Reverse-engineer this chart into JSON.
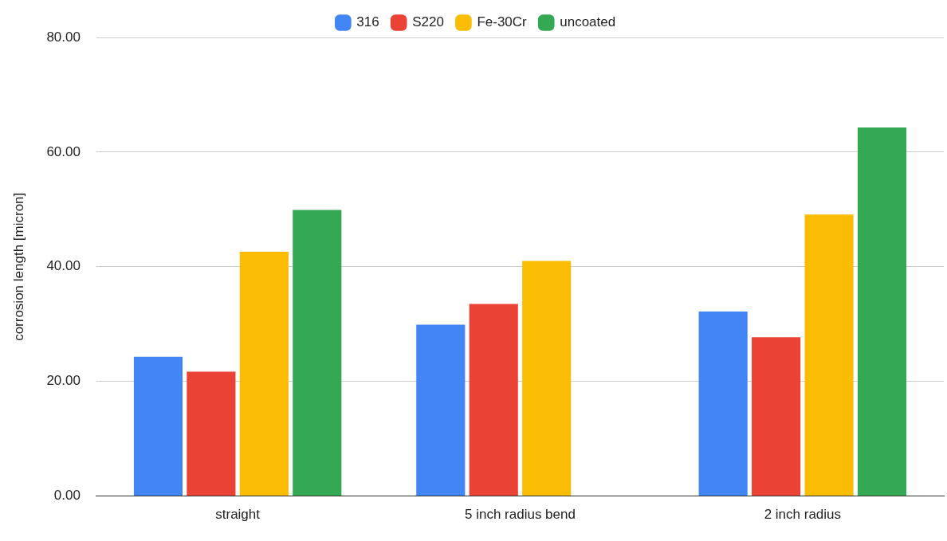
{
  "chart_data": {
    "type": "bar",
    "categories": [
      "straight",
      "5 inch radius bend",
      "2 inch radius"
    ],
    "series": [
      {
        "name": "316",
        "color": "#4285f4",
        "values": [
          24.3,
          29.9,
          32.2
        ]
      },
      {
        "name": "S220",
        "color": "#ea4335",
        "values": [
          21.7,
          33.5,
          27.7
        ]
      },
      {
        "name": "Fe-30Cr",
        "color": "#fbbc04",
        "values": [
          42.6,
          41.0,
          49.1
        ]
      },
      {
        "name": "uncoated",
        "color": "#34a853",
        "values": [
          49.9,
          null,
          64.3
        ]
      }
    ],
    "ylabel": "corrosion length [micron]",
    "ylim": [
      0,
      80
    ],
    "yticks": [
      {
        "value": 0,
        "label": "0.00"
      },
      {
        "value": 20,
        "label": "20.00"
      },
      {
        "value": 40,
        "label": "40.00"
      },
      {
        "value": 60,
        "label": "60.00"
      },
      {
        "value": 80,
        "label": "80.00"
      }
    ],
    "grid": "y",
    "legend": "top"
  }
}
